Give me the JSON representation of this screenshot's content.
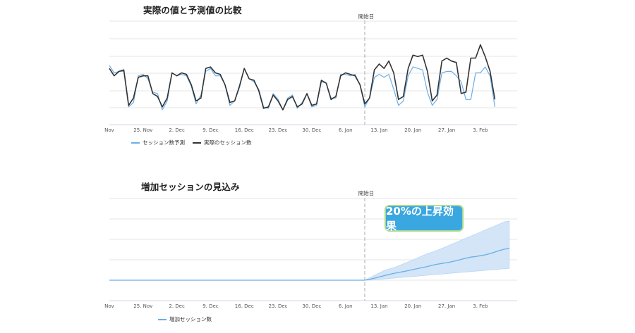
{
  "chart_data": [
    {
      "type": "line",
      "title": "実際の値と予測値の比較",
      "marker_label": "開始日",
      "marker_x": 53,
      "x_tick_labels": [
        "Nov",
        "25. Nov",
        "2. Dec",
        "9. Dec",
        "16. Dec",
        "23. Dec",
        "30. Dec",
        "6. Jan",
        "13. Jan",
        "20. Jan",
        "27. Jan",
        "3. Feb"
      ],
      "x_ticks": [
        0,
        7,
        14,
        21,
        28,
        35,
        42,
        49,
        56,
        63,
        70,
        77
      ],
      "ylim": [
        0,
        7
      ],
      "series": [
        {
          "name": "セッション数予測",
          "color": "#6aaee8",
          "values": [
            4.0,
            3.5,
            3.6,
            3.6,
            1.2,
            1.5,
            3.3,
            3.4,
            3.1,
            2.2,
            2.1,
            1.0,
            1.6,
            3.5,
            3.3,
            3.4,
            3.3,
            2.6,
            1.4,
            2.0,
            3.6,
            3.8,
            3.3,
            3.3,
            2.7,
            1.3,
            1.6,
            2.5,
            3.8,
            3.1,
            2.9,
            2.4,
            1.2,
            1.1,
            2.1,
            1.7,
            1.0,
            1.8,
            2.0,
            1.1,
            1.5,
            2.1,
            1.2,
            1.3,
            2.9,
            2.8,
            1.8,
            1.8,
            3.4,
            3.4,
            3.3,
            3.4,
            2.7,
            1.2,
            1.8,
            3.2,
            3.4,
            3.2,
            3.4,
            2.4,
            1.3,
            1.6,
            3.3,
            3.9,
            3.8,
            3.7,
            2.2,
            1.3,
            1.7,
            3.5,
            3.6,
            3.6,
            3.3,
            2.9,
            1.7,
            1.7,
            3.5,
            3.5,
            3.9,
            3.3,
            1.2
          ]
        },
        {
          "name": "実際のセッション数",
          "color": "#333333",
          "values": [
            3.8,
            3.3,
            3.6,
            3.7,
            1.3,
            1.8,
            3.2,
            3.3,
            3.3,
            2.1,
            1.9,
            1.2,
            1.8,
            3.5,
            3.3,
            3.5,
            3.4,
            2.7,
            1.6,
            1.8,
            3.8,
            3.9,
            3.5,
            3.4,
            2.7,
            1.5,
            1.6,
            2.6,
            3.8,
            3.1,
            3.0,
            2.3,
            1.1,
            1.2,
            2.0,
            1.6,
            1.0,
            1.7,
            1.9,
            1.2,
            1.4,
            2.1,
            1.3,
            1.4,
            3.0,
            2.8,
            1.7,
            1.9,
            3.3,
            3.5,
            3.4,
            3.3,
            2.7,
            1.4,
            1.8,
            3.7,
            4.1,
            3.8,
            4.3,
            3.5,
            1.7,
            1.9,
            3.8,
            4.7,
            4.6,
            4.7,
            3.6,
            1.6,
            2.0,
            4.3,
            4.5,
            4.3,
            4.2,
            2.1,
            2.2,
            4.5,
            4.5,
            5.4,
            4.6,
            3.6,
            1.7
          ]
        }
      ]
    },
    {
      "type": "area",
      "title": "増加セッションの見込み",
      "marker_label": "開始日",
      "marker_x": 53,
      "x_tick_labels": [
        "Nov",
        "25. Nov",
        "2. Dec",
        "9. Dec",
        "16. Dec",
        "23. Dec",
        "30. Dec",
        "6. Jan",
        "13. Jan",
        "20. Jan",
        "27. Jan",
        "3. Feb"
      ],
      "x_ticks": [
        0,
        7,
        14,
        21,
        28,
        35,
        42,
        49,
        56,
        63,
        70,
        77
      ],
      "ylim": [
        -1,
        4
      ],
      "series": [
        {
          "name": "増加セッション数",
          "color": "#6aaee8",
          "x_start": 53,
          "values": [
            0.0,
            0.05,
            0.1,
            0.16,
            0.22,
            0.28,
            0.33,
            0.38,
            0.42,
            0.47,
            0.52,
            0.57,
            0.62,
            0.67,
            0.73,
            0.78,
            0.82,
            0.86,
            0.9,
            0.96,
            1.02,
            1.08,
            1.13,
            1.16,
            1.2,
            1.24,
            1.3,
            1.38,
            1.46,
            1.52,
            1.56
          ],
          "upper": [
            0.0,
            0.12,
            0.24,
            0.36,
            0.48,
            0.55,
            0.62,
            0.7,
            0.8,
            0.9,
            1.0,
            1.1,
            1.2,
            1.3,
            1.38,
            1.46,
            1.56,
            1.66,
            1.76,
            1.86,
            1.96,
            2.06,
            2.16,
            2.26,
            2.36,
            2.46,
            2.56,
            2.66,
            2.76,
            2.86,
            2.9
          ],
          "lower": [
            0.0,
            0.0,
            0.02,
            0.04,
            0.06,
            0.08,
            0.1,
            0.12,
            0.14,
            0.16,
            0.18,
            0.2,
            0.22,
            0.24,
            0.26,
            0.28,
            0.3,
            0.32,
            0.34,
            0.36,
            0.38,
            0.4,
            0.42,
            0.44,
            0.46,
            0.48,
            0.5,
            0.52,
            0.54,
            0.56,
            0.58
          ],
          "band_color": "#cfe3f7"
        }
      ],
      "annotation": "20%の上昇効果"
    }
  ]
}
